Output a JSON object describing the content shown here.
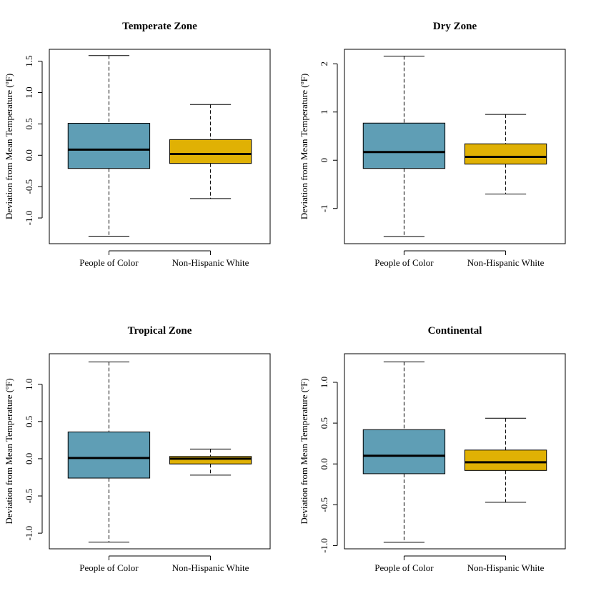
{
  "colors": {
    "people_of_color": "#5f9eb5",
    "non_hispanic_white": "#e0b104"
  },
  "chart_data": [
    {
      "type": "box",
      "title": "Temperate Zone",
      "ylabel": "Deviation from Mean Temperature (ºF)",
      "categories": [
        "People of Color",
        "Non-Hispanic White"
      ],
      "yticks": [
        -1.0,
        -0.5,
        0.0,
        0.5,
        1.0,
        1.5
      ],
      "ytick_labels": [
        "-1.0",
        "-0.5",
        "0.0",
        "0.5",
        "1.0",
        "1.5"
      ],
      "ylim": [
        -1.41,
        1.69
      ],
      "boxes": [
        {
          "min": -1.29,
          "q1": -0.21,
          "median": 0.09,
          "q3": 0.51,
          "max": 1.59
        },
        {
          "min": -0.69,
          "q1": -0.13,
          "median": 0.02,
          "q3": 0.25,
          "max": 0.81
        }
      ]
    },
    {
      "type": "box",
      "title": "Dry Zone",
      "ylabel": "Deviation from Mean Temperature (ºF)",
      "categories": [
        "People of Color",
        "Non-Hispanic White"
      ],
      "yticks": [
        -1,
        0,
        1,
        2
      ],
      "ytick_labels": [
        "-1",
        "0",
        "1",
        "2"
      ],
      "ylim": [
        -1.73,
        2.3
      ],
      "boxes": [
        {
          "min": -1.58,
          "q1": -0.17,
          "median": 0.17,
          "q3": 0.77,
          "max": 2.16
        },
        {
          "min": -0.7,
          "q1": -0.08,
          "median": 0.07,
          "q3": 0.34,
          "max": 0.95
        }
      ]
    },
    {
      "type": "box",
      "title": "Tropical Zone",
      "ylabel": "Deviation from Mean Temperature (ºF)",
      "categories": [
        "People of Color",
        "Non-Hispanic White"
      ],
      "yticks": [
        -1.0,
        -0.5,
        0.0,
        0.5,
        1.0
      ],
      "ytick_labels": [
        "-1.0",
        "-0.5",
        "0.0",
        "0.5",
        "1.0"
      ],
      "ylim": [
        -1.21,
        1.41
      ],
      "boxes": [
        {
          "min": -1.12,
          "q1": -0.26,
          "median": 0.01,
          "q3": 0.36,
          "max": 1.3
        },
        {
          "min": -0.22,
          "q1": -0.07,
          "median": 0.0,
          "q3": 0.03,
          "max": 0.13
        }
      ]
    },
    {
      "type": "box",
      "title": "Continental",
      "ylabel": "Deviation from Mean Temperature (ºF)",
      "categories": [
        "People of Color",
        "Non-Hispanic White"
      ],
      "yticks": [
        -1.0,
        -0.5,
        0.0,
        0.5,
        1.0
      ],
      "ytick_labels": [
        "-1.0",
        "-0.5",
        "0.0",
        "0.5",
        "1.0"
      ],
      "ylim": [
        -1.04,
        1.35
      ],
      "boxes": [
        {
          "min": -0.96,
          "q1": -0.12,
          "median": 0.1,
          "q3": 0.42,
          "max": 1.25
        },
        {
          "min": -0.47,
          "q1": -0.08,
          "median": 0.02,
          "q3": 0.17,
          "max": 0.56
        }
      ]
    }
  ]
}
